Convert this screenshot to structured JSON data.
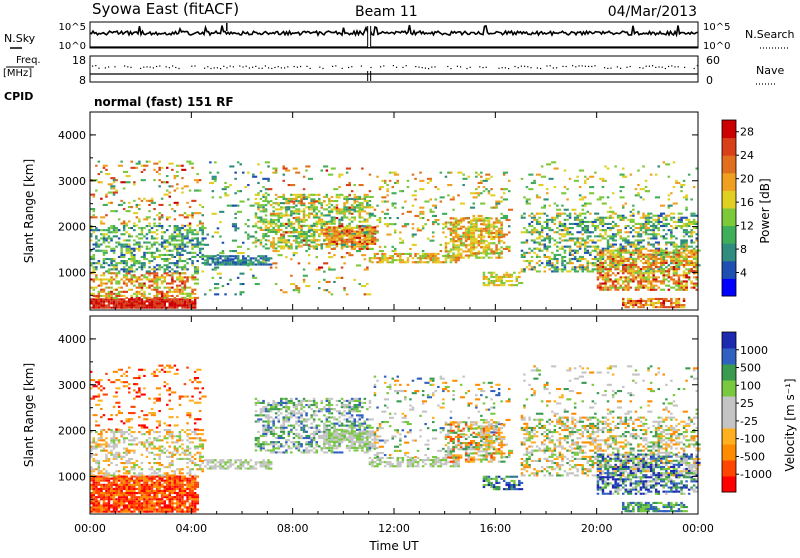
{
  "header": {
    "station": "Syowa East (fitACF)",
    "beam": "Beam 11",
    "date": "04/Mar/2013"
  },
  "status_panel": {
    "nsky_label": "N.Sky",
    "nsearch_label": "N.Search",
    "freq_label": "Freq.",
    "freq_unit": "[MHz]",
    "nave_label": "Nave",
    "cpid_label": "CPID",
    "cpid_value": "normal (fast) 151 RF",
    "noise_ticks_left": [
      "10^5",
      "10^0"
    ],
    "noise_ticks_right": [
      "10^5",
      "10^0"
    ],
    "freq_ticks_left": [
      "18",
      "8"
    ],
    "nave_ticks_right": [
      "60",
      "0"
    ],
    "gaps_hours": [
      11.0
    ]
  },
  "colors": {
    "power": [
      "#0000ff",
      "#1f4fb0",
      "#2f8c7e",
      "#3fae5a",
      "#7cc93a",
      "#e0d021",
      "#f0a020",
      "#e0701d",
      "#d8401a",
      "#cc0000"
    ],
    "velocity": [
      "#ff0000",
      "#ff4500",
      "#ff8c00",
      "#ffb020",
      "#c4c4c4",
      "#c4c4c4",
      "#78c840",
      "#3a9a50",
      "#3060c0",
      "#1d2ab0"
    ]
  },
  "chart_data": [
    {
      "type": "heatmap",
      "name": "power",
      "ylabel": "Slant Range [km]",
      "xlabel": "",
      "ylim": [
        180,
        4500
      ],
      "yticks": [
        1000,
        2000,
        3000,
        4000
      ],
      "colorbar_label": "Power [dB]",
      "colorbar_range": [
        0,
        30
      ],
      "colorbar_ticks": [
        4,
        8,
        12,
        16,
        20,
        24,
        28
      ],
      "bands": [
        {
          "t0": 0.0,
          "t1": 4.2,
          "r0": 210,
          "r1": 420,
          "v0": 24,
          "v1": 30,
          "d": 0.95
        },
        {
          "t0": 0.0,
          "t1": 4.2,
          "r0": 420,
          "r1": 1000,
          "v0": 12,
          "v1": 28,
          "d": 0.45
        },
        {
          "t0": 0.0,
          "t1": 4.5,
          "r0": 1000,
          "r1": 2000,
          "v0": 4,
          "v1": 16,
          "d": 0.4
        },
        {
          "t0": 0.0,
          "t1": 4.5,
          "r0": 2000,
          "r1": 3400,
          "v0": 8,
          "v1": 28,
          "d": 0.12
        },
        {
          "t0": 4.5,
          "t1": 7.0,
          "r0": 1150,
          "r1": 1350,
          "v0": 4,
          "v1": 10,
          "d": 0.7
        },
        {
          "t0": 4.5,
          "t1": 7.0,
          "r0": 500,
          "r1": 3400,
          "v0": 4,
          "v1": 16,
          "d": 0.08
        },
        {
          "t0": 6.5,
          "t1": 11.0,
          "r0": 1500,
          "r1": 2700,
          "v0": 8,
          "v1": 20,
          "d": 0.45
        },
        {
          "t0": 9.2,
          "t1": 11.2,
          "r0": 1600,
          "r1": 2000,
          "v0": 16,
          "v1": 28,
          "d": 0.7
        },
        {
          "t0": 7.0,
          "t1": 11.0,
          "r0": 500,
          "r1": 3300,
          "v0": 8,
          "v1": 28,
          "d": 0.08
        },
        {
          "t0": 11.0,
          "t1": 14.5,
          "r0": 1200,
          "r1": 1400,
          "v0": 12,
          "v1": 24,
          "d": 0.6
        },
        {
          "t0": 11.2,
          "t1": 16.5,
          "r0": 1400,
          "r1": 3200,
          "v0": 8,
          "v1": 24,
          "d": 0.12
        },
        {
          "t0": 14.0,
          "t1": 16.2,
          "r0": 1300,
          "r1": 2200,
          "v0": 12,
          "v1": 24,
          "d": 0.55
        },
        {
          "t0": 15.5,
          "t1": 17.0,
          "r0": 700,
          "r1": 1000,
          "v0": 12,
          "v1": 20,
          "d": 0.5
        },
        {
          "t0": 17.0,
          "t1": 24.0,
          "r0": 1000,
          "r1": 2300,
          "v0": 4,
          "v1": 20,
          "d": 0.4
        },
        {
          "t0": 20.0,
          "t1": 24.0,
          "r0": 600,
          "r1": 1500,
          "v0": 12,
          "v1": 28,
          "d": 0.55
        },
        {
          "t0": 21.0,
          "t1": 23.5,
          "r0": 220,
          "r1": 420,
          "v0": 16,
          "v1": 28,
          "d": 0.7
        },
        {
          "t0": 17.0,
          "t1": 24.0,
          "r0": 2300,
          "r1": 3400,
          "v0": 8,
          "v1": 20,
          "d": 0.08
        }
      ]
    },
    {
      "type": "heatmap",
      "name": "velocity",
      "ylabel": "Slant Range [km]",
      "xlabel": "Time UT",
      "ylim": [
        180,
        4500
      ],
      "yticks": [
        1000,
        2000,
        3000,
        4000
      ],
      "xticks": [
        "00:00",
        "04:00",
        "08:00",
        "12:00",
        "16:00",
        "20:00",
        "00:00"
      ],
      "colorbar_label": "Velocity [m s⁻¹]",
      "colorbar_ticks": [
        1000,
        500,
        100,
        25,
        -25,
        -100,
        -500,
        -1000
      ],
      "bands": [
        {
          "t0": 0.0,
          "t1": 4.2,
          "r0": 210,
          "r1": 1000,
          "v0": 0,
          "v1": 2,
          "d": 0.85
        },
        {
          "t0": 0.0,
          "t1": 4.5,
          "r0": 1000,
          "r1": 2000,
          "v0": 2,
          "v1": 6,
          "d": 0.35
        },
        {
          "t0": 0.0,
          "t1": 4.5,
          "r0": 2000,
          "r1": 3400,
          "v0": 0,
          "v1": 3,
          "d": 0.12
        },
        {
          "t0": 4.5,
          "t1": 7.0,
          "r0": 1150,
          "r1": 1350,
          "v0": 4,
          "v1": 6,
          "d": 0.65
        },
        {
          "t0": 6.5,
          "t1": 11.0,
          "r0": 1500,
          "r1": 2700,
          "v0": 4,
          "v1": 8,
          "d": 0.45
        },
        {
          "t0": 9.2,
          "t1": 11.2,
          "r0": 1600,
          "r1": 2000,
          "v0": 4,
          "v1": 6,
          "d": 0.7
        },
        {
          "t0": 11.0,
          "t1": 14.5,
          "r0": 1200,
          "r1": 1400,
          "v0": 4,
          "v1": 6,
          "d": 0.6
        },
        {
          "t0": 11.2,
          "t1": 16.5,
          "r0": 1400,
          "r1": 3200,
          "v0": 2,
          "v1": 8,
          "d": 0.12
        },
        {
          "t0": 14.0,
          "t1": 16.2,
          "r0": 1300,
          "r1": 2200,
          "v0": 1,
          "v1": 7,
          "d": 0.5
        },
        {
          "t0": 15.5,
          "t1": 17.0,
          "r0": 700,
          "r1": 1000,
          "v0": 6,
          "v1": 9,
          "d": 0.5
        },
        {
          "t0": 17.0,
          "t1": 24.0,
          "r0": 1000,
          "r1": 2300,
          "v0": 2,
          "v1": 7,
          "d": 0.4
        },
        {
          "t0": 20.0,
          "t1": 24.0,
          "r0": 600,
          "r1": 1500,
          "v0": 5,
          "v1": 10,
          "d": 0.5
        },
        {
          "t0": 21.0,
          "t1": 23.5,
          "r0": 220,
          "r1": 420,
          "v0": 6,
          "v1": 8,
          "d": 0.7
        },
        {
          "t0": 17.0,
          "t1": 24.0,
          "r0": 2300,
          "r1": 3400,
          "v0": 2,
          "v1": 7,
          "d": 0.08
        }
      ]
    }
  ]
}
